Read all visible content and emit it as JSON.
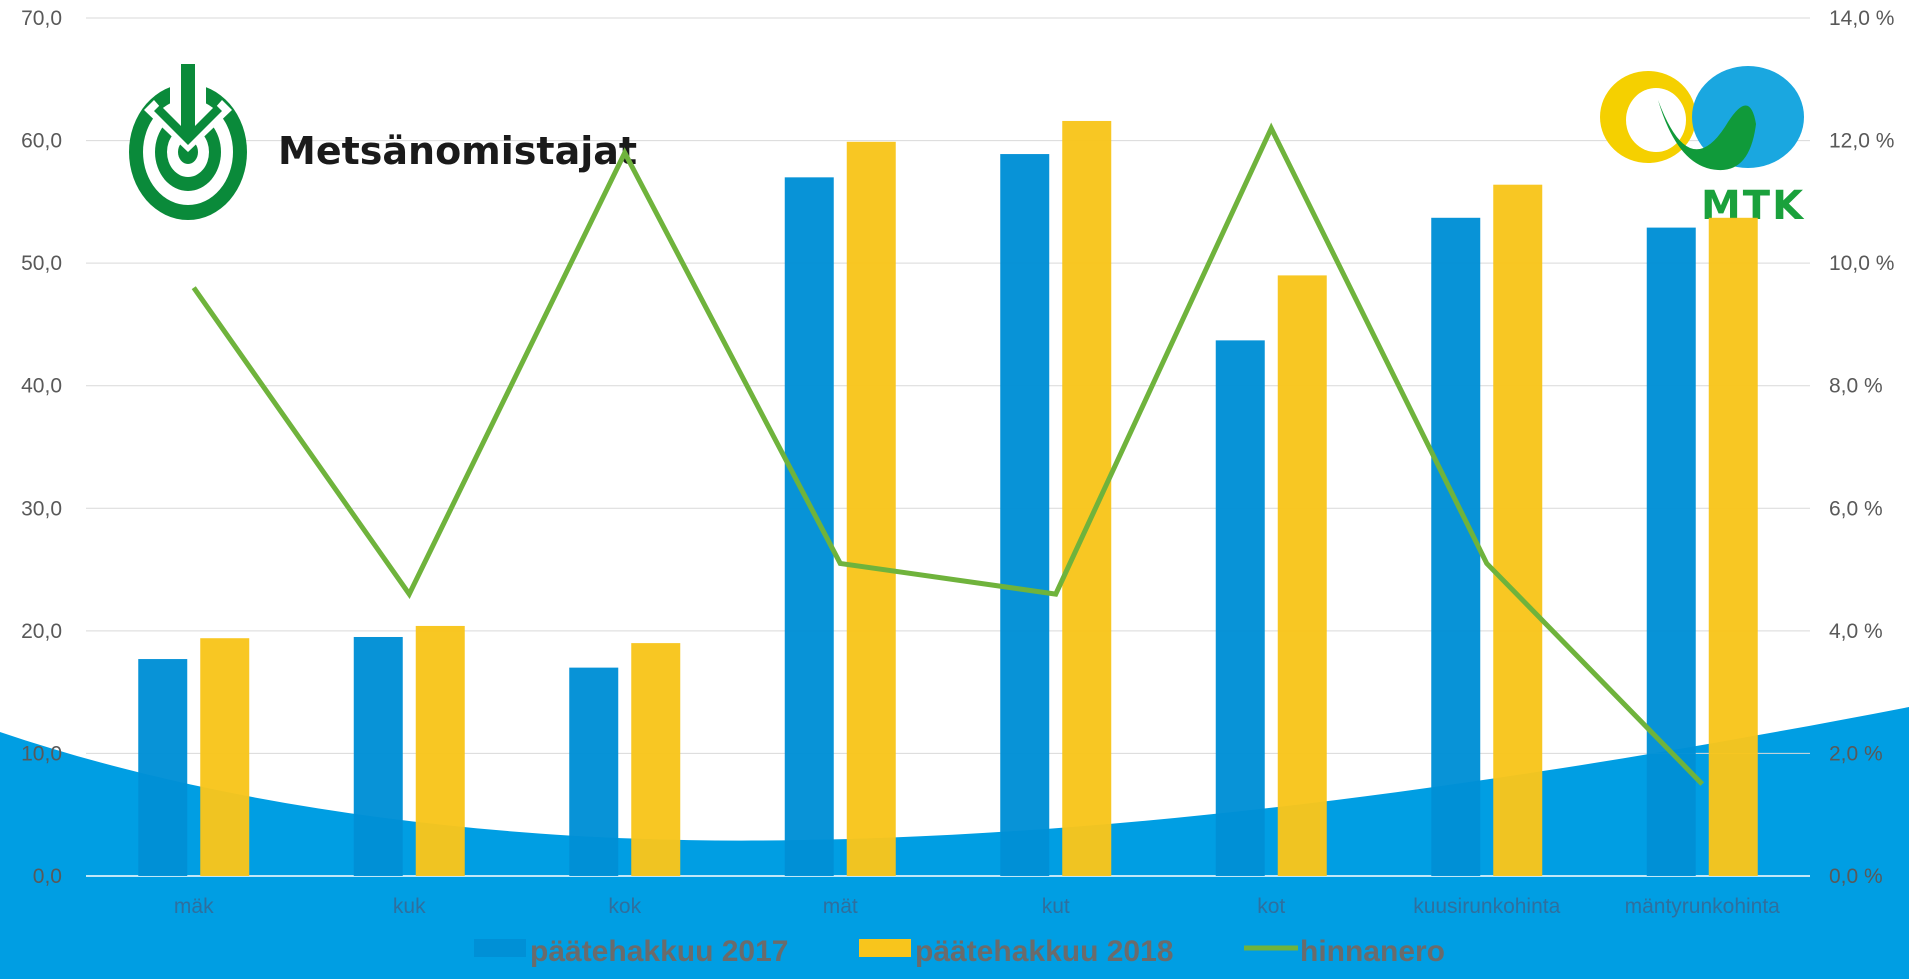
{
  "logos": {
    "left_text": "Metsänomistajat",
    "right_text": "MTK"
  },
  "colors": {
    "series_2017": "#0090d6",
    "series_2018": "#f8c51c",
    "line": "#6fb33c",
    "wave": "#009ee3",
    "grid": "#d9d9d9"
  },
  "chart_data": {
    "type": "bar",
    "categories": [
      "mäk",
      "kuk",
      "kok",
      "mät",
      "kut",
      "kot",
      "kuusirunkohinta",
      "mäntyrunkohinta"
    ],
    "series": [
      {
        "name": "päätehakkuu 2017",
        "type": "bar",
        "axis": "left",
        "values": [
          17.7,
          19.5,
          17.0,
          57.0,
          58.9,
          43.7,
          53.7,
          52.9
        ]
      },
      {
        "name": "päätehakkuu 2018",
        "type": "bar",
        "axis": "left",
        "values": [
          19.4,
          20.4,
          19.0,
          59.9,
          61.6,
          49.0,
          56.4,
          53.7
        ]
      },
      {
        "name": "hinnanero",
        "type": "line",
        "axis": "right",
        "values": [
          9.6,
          4.6,
          11.8,
          5.1,
          4.6,
          12.2,
          5.1,
          1.5
        ]
      }
    ],
    "ylim": [
      0,
      70
    ],
    "y2lim": [
      0,
      14
    ],
    "yticks": [
      "0,0",
      "10,0",
      "20,0",
      "30,0",
      "40,0",
      "50,0",
      "60,0",
      "70,0"
    ],
    "y2ticks": [
      "0,0 %",
      "2,0 %",
      "4,0 %",
      "6,0 %",
      "8,0 %",
      "10,0 %",
      "12,0 %",
      "14,0 %"
    ],
    "grid": true,
    "legend_position": "bottom"
  }
}
